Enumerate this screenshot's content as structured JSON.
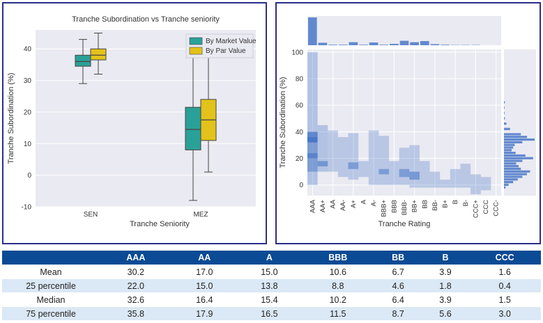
{
  "chart_data": [
    {
      "type": "box",
      "title": "Tranche Subordination vs Tranche seniority",
      "xlabel": "Tranche Seniority",
      "ylabel": "Tranche Subordination (%)",
      "ylim": [
        -10,
        46
      ],
      "yticks": [
        -10,
        0,
        10,
        20,
        30,
        40
      ],
      "categories": [
        "SEN",
        "MEZ"
      ],
      "legend_position": "top-right",
      "grid": true,
      "series": [
        {
          "name": "By Market Value",
          "color": "#2aa198",
          "boxes": [
            {
              "whisker_low": 29,
              "q1": 34.5,
              "median": 36,
              "q3": 38,
              "whisker_high": 43
            },
            {
              "whisker_low": -8,
              "q1": 8,
              "median": 14.5,
              "q3": 21.5,
              "whisker_high": 38
            }
          ]
        },
        {
          "name": "By Par Value",
          "color": "#e3c21b",
          "boxes": [
            {
              "whisker_low": 32,
              "q1": 36.5,
              "median": 38,
              "q3": 40,
              "whisker_high": 45
            },
            {
              "whisker_low": 1,
              "q1": 11,
              "median": 17.5,
              "q3": 24,
              "whisker_high": 39
            }
          ]
        }
      ]
    },
    {
      "type": "heatmap",
      "xlabel": "Tranche Rating",
      "ylabel": "Tranche Subordination (%)",
      "ylim": [
        -8,
        102
      ],
      "yticks": [
        0,
        20,
        40,
        60,
        80,
        100
      ],
      "categories": [
        "AAA",
        "AA+",
        "AA",
        "AA-",
        "A+",
        "A",
        "A-",
        "BBB+",
        "BBB",
        "BBB-",
        "BB+",
        "BB",
        "BB-",
        "B+",
        "B",
        "B-",
        "CCC+",
        "CCC",
        "CCC-"
      ],
      "grid": true,
      "color": "#4a78c8",
      "cells": [
        {
          "rating": "AAA",
          "y0": 0,
          "y1": 100,
          "d": 0.35
        },
        {
          "rating": "AAA",
          "y0": 32,
          "y1": 36,
          "d": 1.0
        },
        {
          "rating": "AAA",
          "y0": 36,
          "y1": 40,
          "d": 0.8
        },
        {
          "rating": "AAA",
          "y0": 20,
          "y1": 24,
          "d": 0.85
        },
        {
          "rating": "AAA",
          "y0": 24,
          "y1": 32,
          "d": 0.5
        },
        {
          "rating": "AAA",
          "y0": 10,
          "y1": 20,
          "d": 0.5
        },
        {
          "rating": "AA+",
          "y0": 10,
          "y1": 45,
          "d": 0.35
        },
        {
          "rating": "AA+",
          "y0": 14,
          "y1": 18,
          "d": 0.6
        },
        {
          "rating": "AA",
          "y0": 10,
          "y1": 41,
          "d": 0.3
        },
        {
          "rating": "AA-",
          "y0": 6,
          "y1": 36,
          "d": 0.3
        },
        {
          "rating": "A+",
          "y0": 4,
          "y1": 39,
          "d": 0.3
        },
        {
          "rating": "A+",
          "y0": 12,
          "y1": 17,
          "d": 0.55
        },
        {
          "rating": "A",
          "y0": 6,
          "y1": 18,
          "d": 0.3
        },
        {
          "rating": "A-",
          "y0": 0,
          "y1": 41,
          "d": 0.3
        },
        {
          "rating": "BBB+",
          "y0": 0,
          "y1": 37,
          "d": 0.3
        },
        {
          "rating": "BBB+",
          "y0": 8,
          "y1": 12,
          "d": 0.55
        },
        {
          "rating": "BBB",
          "y0": 0,
          "y1": 18,
          "d": 0.3
        },
        {
          "rating": "BBB-",
          "y0": 0,
          "y1": 28,
          "d": 0.3
        },
        {
          "rating": "BBB-",
          "y0": 6,
          "y1": 12,
          "d": 0.55
        },
        {
          "rating": "BB+",
          "y0": -2,
          "y1": 30,
          "d": 0.3
        },
        {
          "rating": "BB+",
          "y0": 4,
          "y1": 10,
          "d": 0.6
        },
        {
          "rating": "BB",
          "y0": -2,
          "y1": 18,
          "d": 0.3
        },
        {
          "rating": "BB-",
          "y0": -2,
          "y1": 10,
          "d": 0.3
        },
        {
          "rating": "B+",
          "y0": -2,
          "y1": 4,
          "d": 0.3
        },
        {
          "rating": "B",
          "y0": -2,
          "y1": 12,
          "d": 0.3
        },
        {
          "rating": "B-",
          "y0": -2,
          "y1": 16,
          "d": 0.3
        },
        {
          "rating": "CCC+",
          "y0": -7,
          "y1": 8,
          "d": 0.3
        },
        {
          "rating": "CCC",
          "y0": -4,
          "y1": 6,
          "d": 0.3
        }
      ],
      "marginal_x": [
        {
          "rating": "AAA",
          "value": 100
        },
        {
          "rating": "AA+",
          "value": 9
        },
        {
          "rating": "AA",
          "value": 2
        },
        {
          "rating": "AA-",
          "value": 2
        },
        {
          "rating": "A+",
          "value": 11
        },
        {
          "rating": "A",
          "value": 2
        },
        {
          "rating": "A-",
          "value": 10
        },
        {
          "rating": "BBB+",
          "value": 2
        },
        {
          "rating": "BBB",
          "value": 5
        },
        {
          "rating": "BBB-",
          "value": 16
        },
        {
          "rating": "BB+",
          "value": 11
        },
        {
          "rating": "BB",
          "value": 15
        },
        {
          "rating": "BB-",
          "value": 4
        },
        {
          "rating": "B+",
          "value": 2
        },
        {
          "rating": "B",
          "value": 1
        },
        {
          "rating": "B-",
          "value": 1
        },
        {
          "rating": "CCC+",
          "value": 1
        },
        {
          "rating": "CCC",
          "value": 0
        },
        {
          "rating": "CCC-",
          "value": 0
        }
      ],
      "marginal_y": [
        {
          "y": 62,
          "value": 3
        },
        {
          "y": 58,
          "value": 2
        },
        {
          "y": 54,
          "value": 2
        },
        {
          "y": 50,
          "value": 3
        },
        {
          "y": 46,
          "value": 8
        },
        {
          "y": 42,
          "value": 20
        },
        {
          "y": 38,
          "value": 55
        },
        {
          "y": 36,
          "value": 75
        },
        {
          "y": 34,
          "value": 100
        },
        {
          "y": 32,
          "value": 60
        },
        {
          "y": 30,
          "value": 35
        },
        {
          "y": 28,
          "value": 30
        },
        {
          "y": 26,
          "value": 25
        },
        {
          "y": 24,
          "value": 38
        },
        {
          "y": 22,
          "value": 70
        },
        {
          "y": 20,
          "value": 95
        },
        {
          "y": 18,
          "value": 60
        },
        {
          "y": 16,
          "value": 40
        },
        {
          "y": 14,
          "value": 48
        },
        {
          "y": 12,
          "value": 55
        },
        {
          "y": 10,
          "value": 85
        },
        {
          "y": 8,
          "value": 75
        },
        {
          "y": 6,
          "value": 60
        },
        {
          "y": 4,
          "value": 45
        },
        {
          "y": 2,
          "value": 30
        },
        {
          "y": 0,
          "value": 15
        },
        {
          "y": -2,
          "value": 5
        }
      ]
    }
  ],
  "table": {
    "columns": [
      "",
      "AAA",
      "AA",
      "A",
      "BBB",
      "BB",
      "B",
      "CCC"
    ],
    "rows": [
      {
        "label": "Mean",
        "values": [
          "30.2",
          "17.0",
          "15.0",
          "10.6",
          "6.7",
          "3.9",
          "1.6"
        ]
      },
      {
        "label": "25 percentile",
        "values": [
          "22.0",
          "15.0",
          "13.8",
          "8.8",
          "4.6",
          "1.8",
          "0.4"
        ]
      },
      {
        "label": "Median",
        "values": [
          "32.6",
          "16.4",
          "15.4",
          "10.2",
          "6.4",
          "3.9",
          "1.5"
        ]
      },
      {
        "label": "75 percentile",
        "values": [
          "35.8",
          "17.9",
          "16.5",
          "11.5",
          "8.7",
          "5.6",
          "3.0"
        ]
      }
    ],
    "header_color": "#0b4a94",
    "stripe_color": "#dbe8f5"
  }
}
